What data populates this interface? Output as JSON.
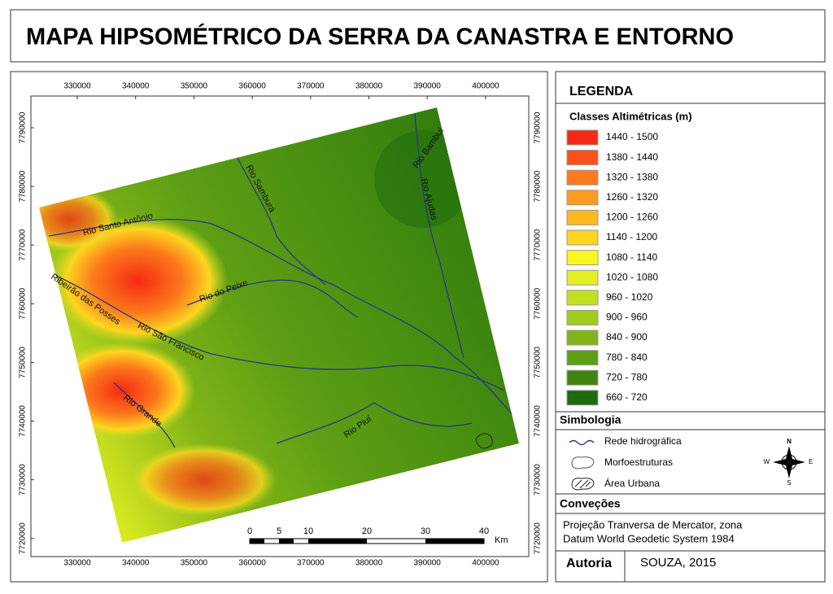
{
  "title": "MAPA HIPSOMÉTRICO DA SERRA DA CANASTRA E ENTORNO",
  "map": {
    "x_coords": [
      330000,
      340000,
      350000,
      360000,
      370000,
      380000,
      390000,
      400000
    ],
    "y_coords": [
      7790000,
      7780000,
      7770000,
      7760000,
      7750000,
      7740000,
      7730000,
      7720000
    ],
    "rivers": [
      "Rio Santo Antônio",
      "Ribeirão das Posses",
      "Rio do Peixe",
      "Rio São Francisco",
      "Rio Grande",
      "Rio Samburá",
      "Rio Bambuí",
      "Rio Ajudas",
      "Rio Piuí"
    ],
    "scale_bar": {
      "labels": [
        0,
        5,
        10,
        20,
        30,
        40
      ],
      "unit": "Km"
    },
    "compass": {
      "n": "N",
      "s": "S",
      "e": "E",
      "w": "W"
    }
  },
  "legend": {
    "title": "LEGENDA",
    "classes_title": "Classes Altimétricas (m)",
    "classes": [
      {
        "label": "1440 - 1500",
        "color": "#f52a14"
      },
      {
        "label": "1380 - 1440",
        "color": "#f8521a"
      },
      {
        "label": "1320 - 1380",
        "color": "#fb7a1b"
      },
      {
        "label": "1260 - 1320",
        "color": "#fc9b1e"
      },
      {
        "label": "1200 - 1260",
        "color": "#fdb71f"
      },
      {
        "label": "1140 - 1200",
        "color": "#fdd51f"
      },
      {
        "label": "1080 - 1140",
        "color": "#fbf61e"
      },
      {
        "label": "1020 - 1080",
        "color": "#e3ef22"
      },
      {
        "label": "960 - 1020",
        "color": "#c4df22"
      },
      {
        "label": "900 - 960",
        "color": "#a2cb1e"
      },
      {
        "label": "840 - 900",
        "color": "#82b418"
      },
      {
        "label": "780 - 840",
        "color": "#5d9e14"
      },
      {
        "label": "720 - 780",
        "color": "#3f8410"
      },
      {
        "label": "660 - 720",
        "color": "#1e6a0c"
      }
    ],
    "symbology_title": "Simbologia",
    "symbols": [
      "Rede hidrográfica",
      "Morfoestruturas",
      "Área Urbana"
    ],
    "conventions_title": "Conveções",
    "conventions": [
      "Projeção Tranversa de Mercator, zona",
      "Datum World Geodetic System 1984"
    ],
    "authorship_label": "Autoria",
    "authorship": "SOUZA, 2015"
  }
}
